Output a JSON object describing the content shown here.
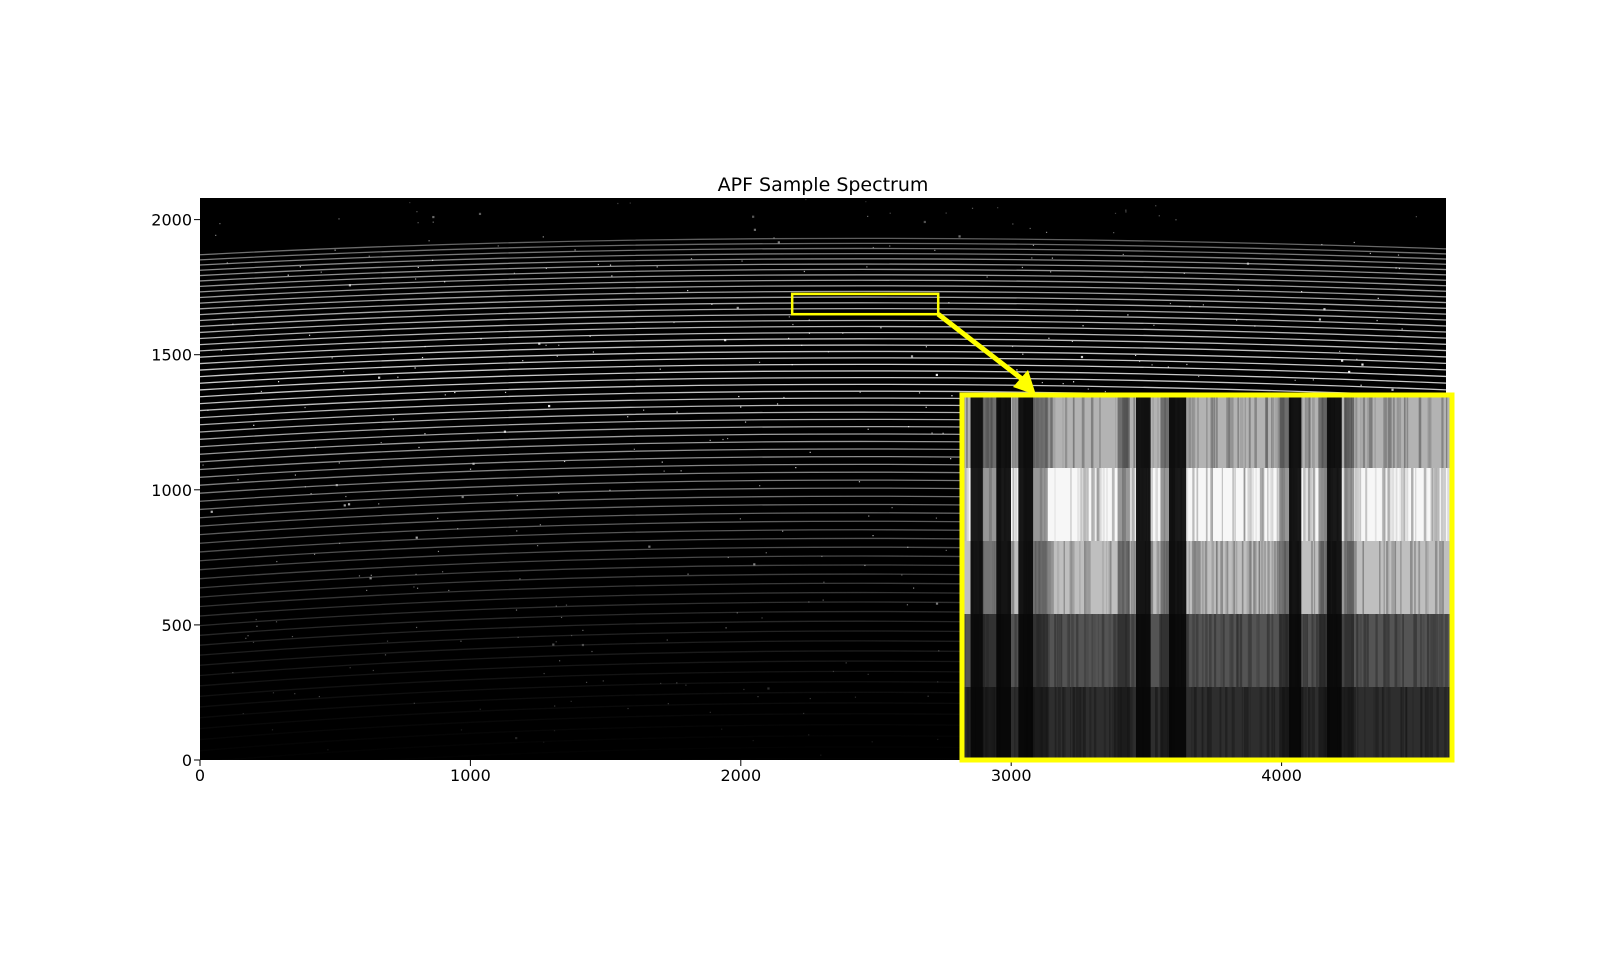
{
  "title": "APF Sample Spectrum",
  "chart_data": {
    "type": "heatmap",
    "title": "APF Sample Spectrum",
    "xlabel": "",
    "ylabel": "",
    "xlim": [
      0,
      4608
    ],
    "ylim": [
      0,
      2080
    ],
    "x_ticks": [
      0,
      1000,
      2000,
      3000,
      4000
    ],
    "y_ticks": [
      0,
      500,
      1000,
      1500,
      2000
    ],
    "colormap": "gray",
    "zoom_region": {
      "x": [
        2190,
        2730
      ],
      "y": [
        1650,
        1725
      ]
    },
    "highlight_color": "#ffff00"
  }
}
